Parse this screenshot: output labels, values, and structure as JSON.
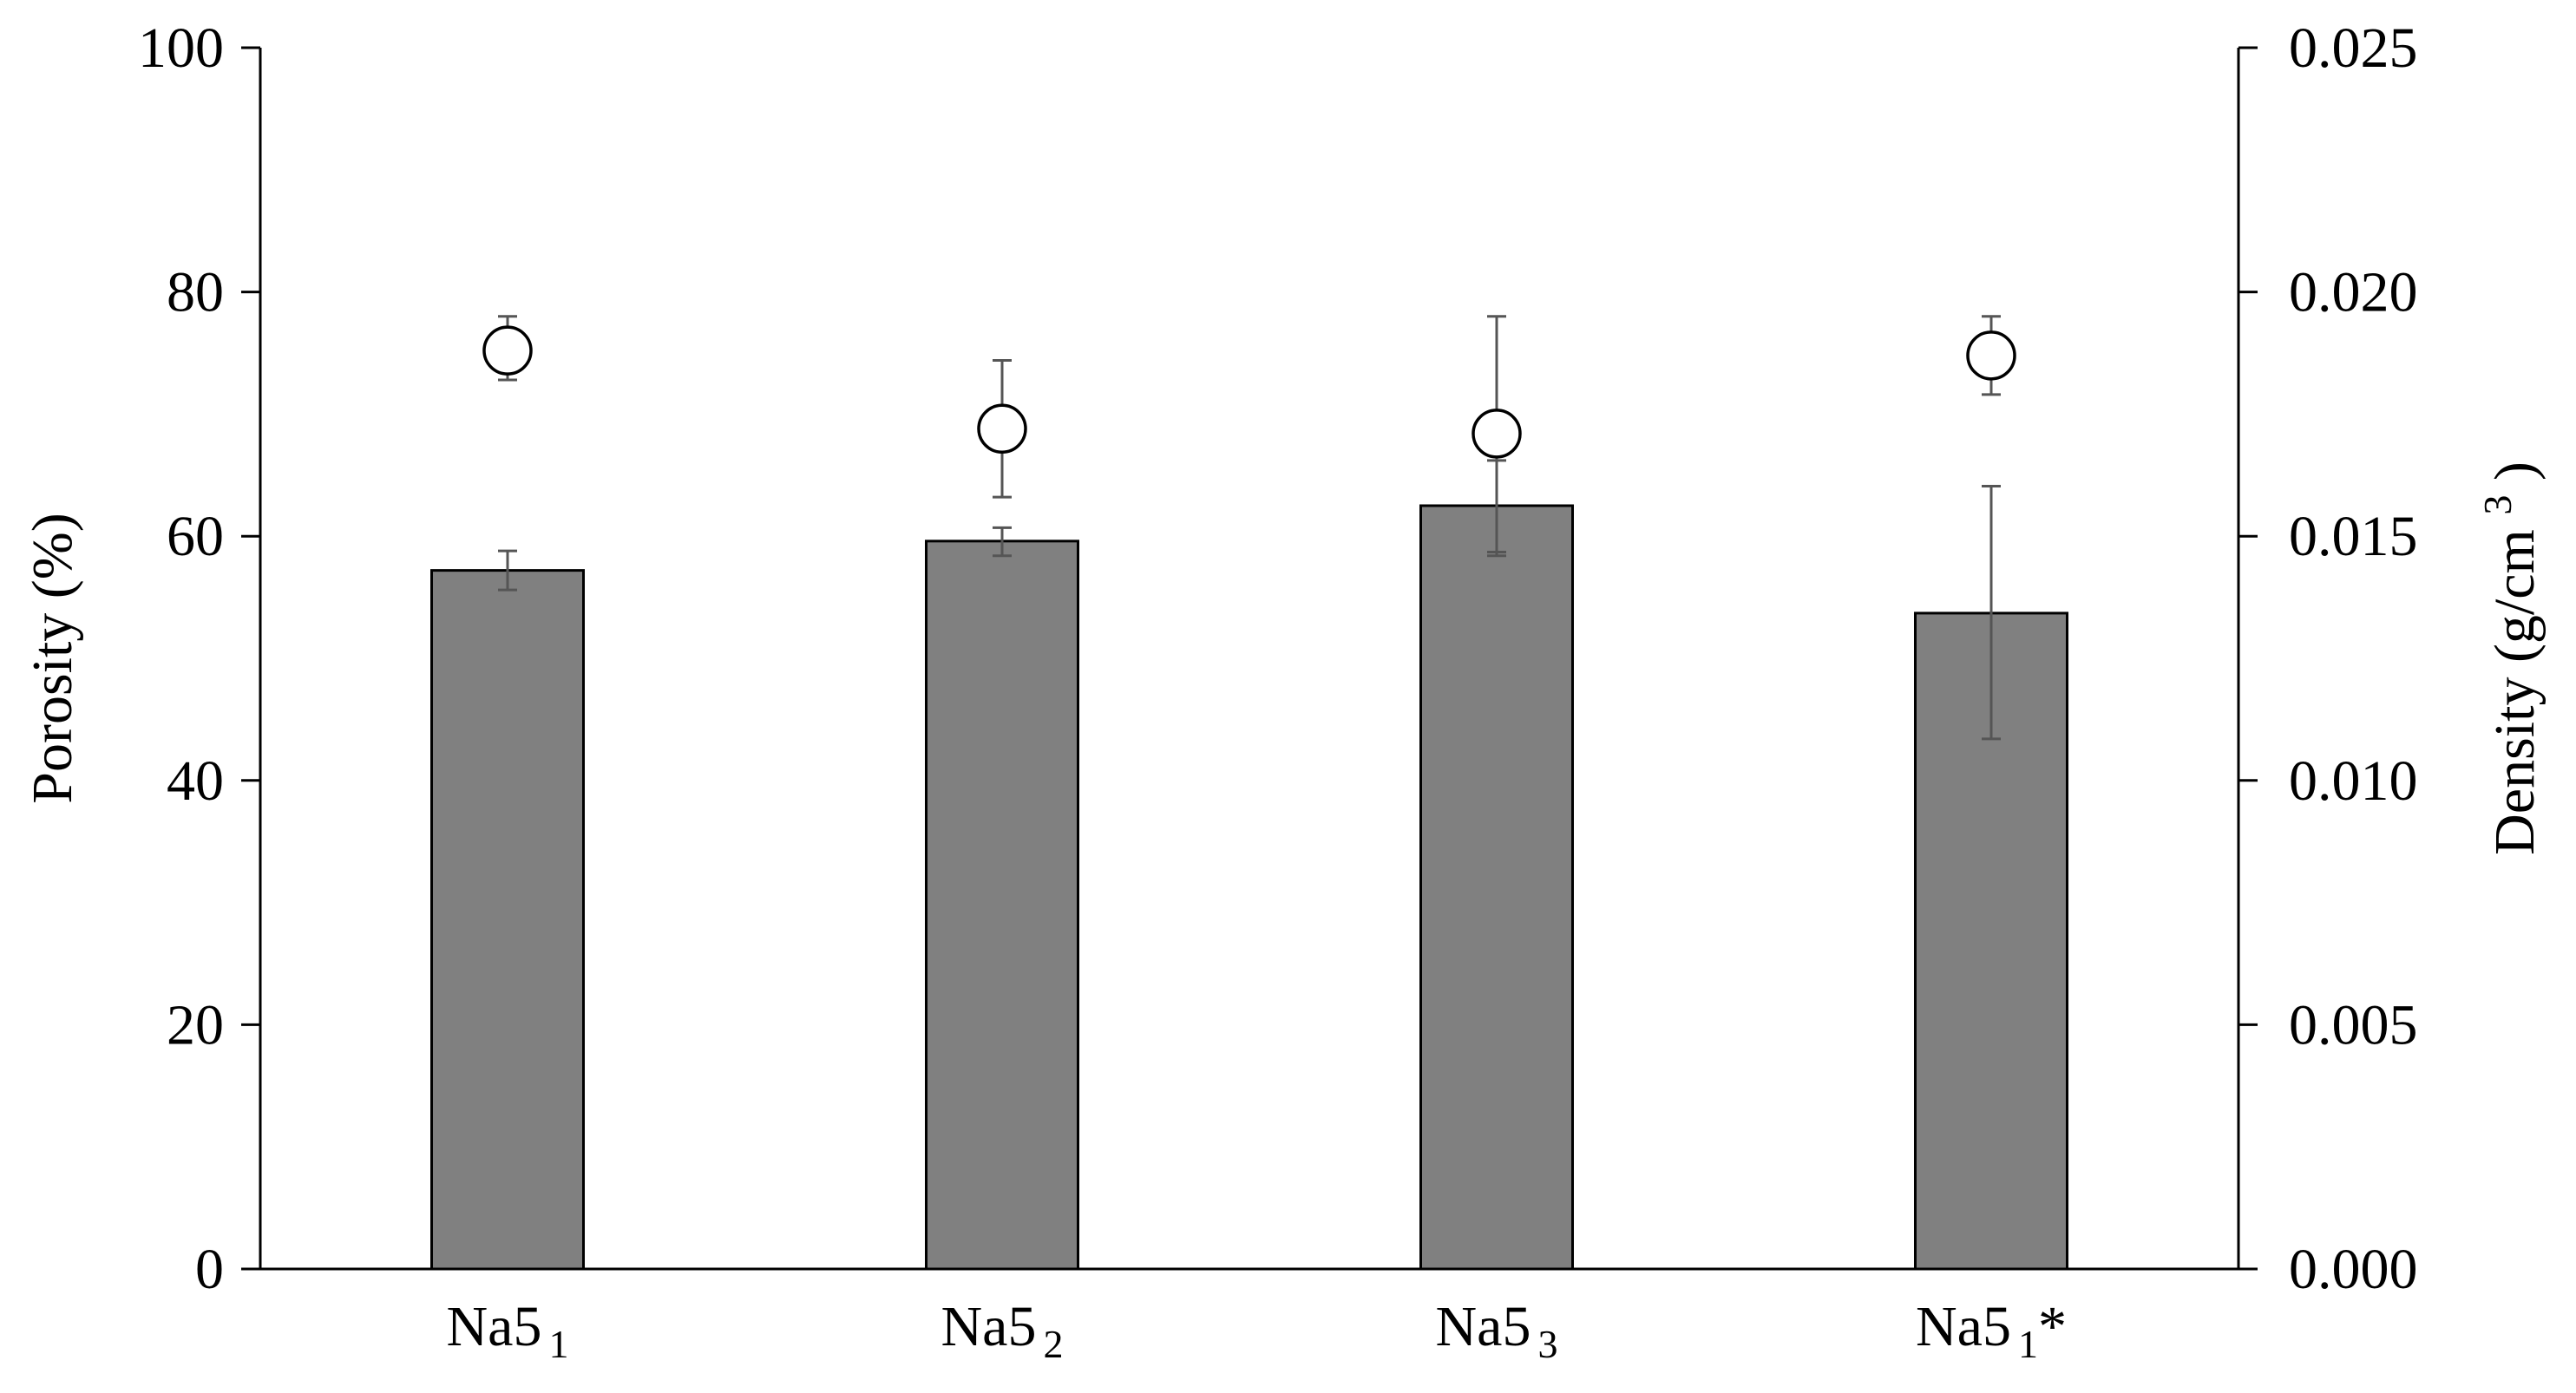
{
  "chart_data": {
    "type": "bar",
    "categories": [
      {
        "base": "Na5",
        "sub": "1",
        "suffix": ""
      },
      {
        "base": "Na5",
        "sub": "2",
        "suffix": ""
      },
      {
        "base": "Na5",
        "sub": "3",
        "suffix": ""
      },
      {
        "base": "Na5",
        "sub": "1",
        "suffix": "*"
      }
    ],
    "series": [
      {
        "kind": "bar",
        "axis": "left",
        "values": [
          57.2,
          59.6,
          62.5,
          53.7
        ],
        "error_high": [
          58.8,
          60.7,
          66.2,
          64.1
        ],
        "error_low": [
          55.6,
          58.4,
          58.7,
          43.4
        ]
      },
      {
        "kind": "marker",
        "axis": "right",
        "values": [
          0.0188,
          0.0172,
          0.0171,
          0.0187
        ],
        "error_high": [
          0.0195,
          0.0186,
          0.0195,
          0.0195
        ],
        "error_low": [
          0.0182,
          0.0158,
          0.0146,
          0.0179
        ]
      }
    ],
    "ylabel": "Porosity (%)",
    "ylabel_right": {
      "base": "Density (g/cm",
      "sup": "3",
      "close": ")"
    },
    "ylim": [
      0,
      100
    ],
    "ylim_right": [
      0,
      0.025
    ],
    "yticks": [
      "0",
      "20",
      "40",
      "60",
      "80",
      "100"
    ],
    "yticks_right": [
      "0.000",
      "0.005",
      "0.010",
      "0.015",
      "0.020",
      "0.025"
    ],
    "grid": false,
    "colors": {
      "bar": "#808080",
      "bar_edge": "#000000",
      "marker_fill": "#ffffff",
      "marker_edge": "#000000",
      "error": "#555555"
    }
  }
}
